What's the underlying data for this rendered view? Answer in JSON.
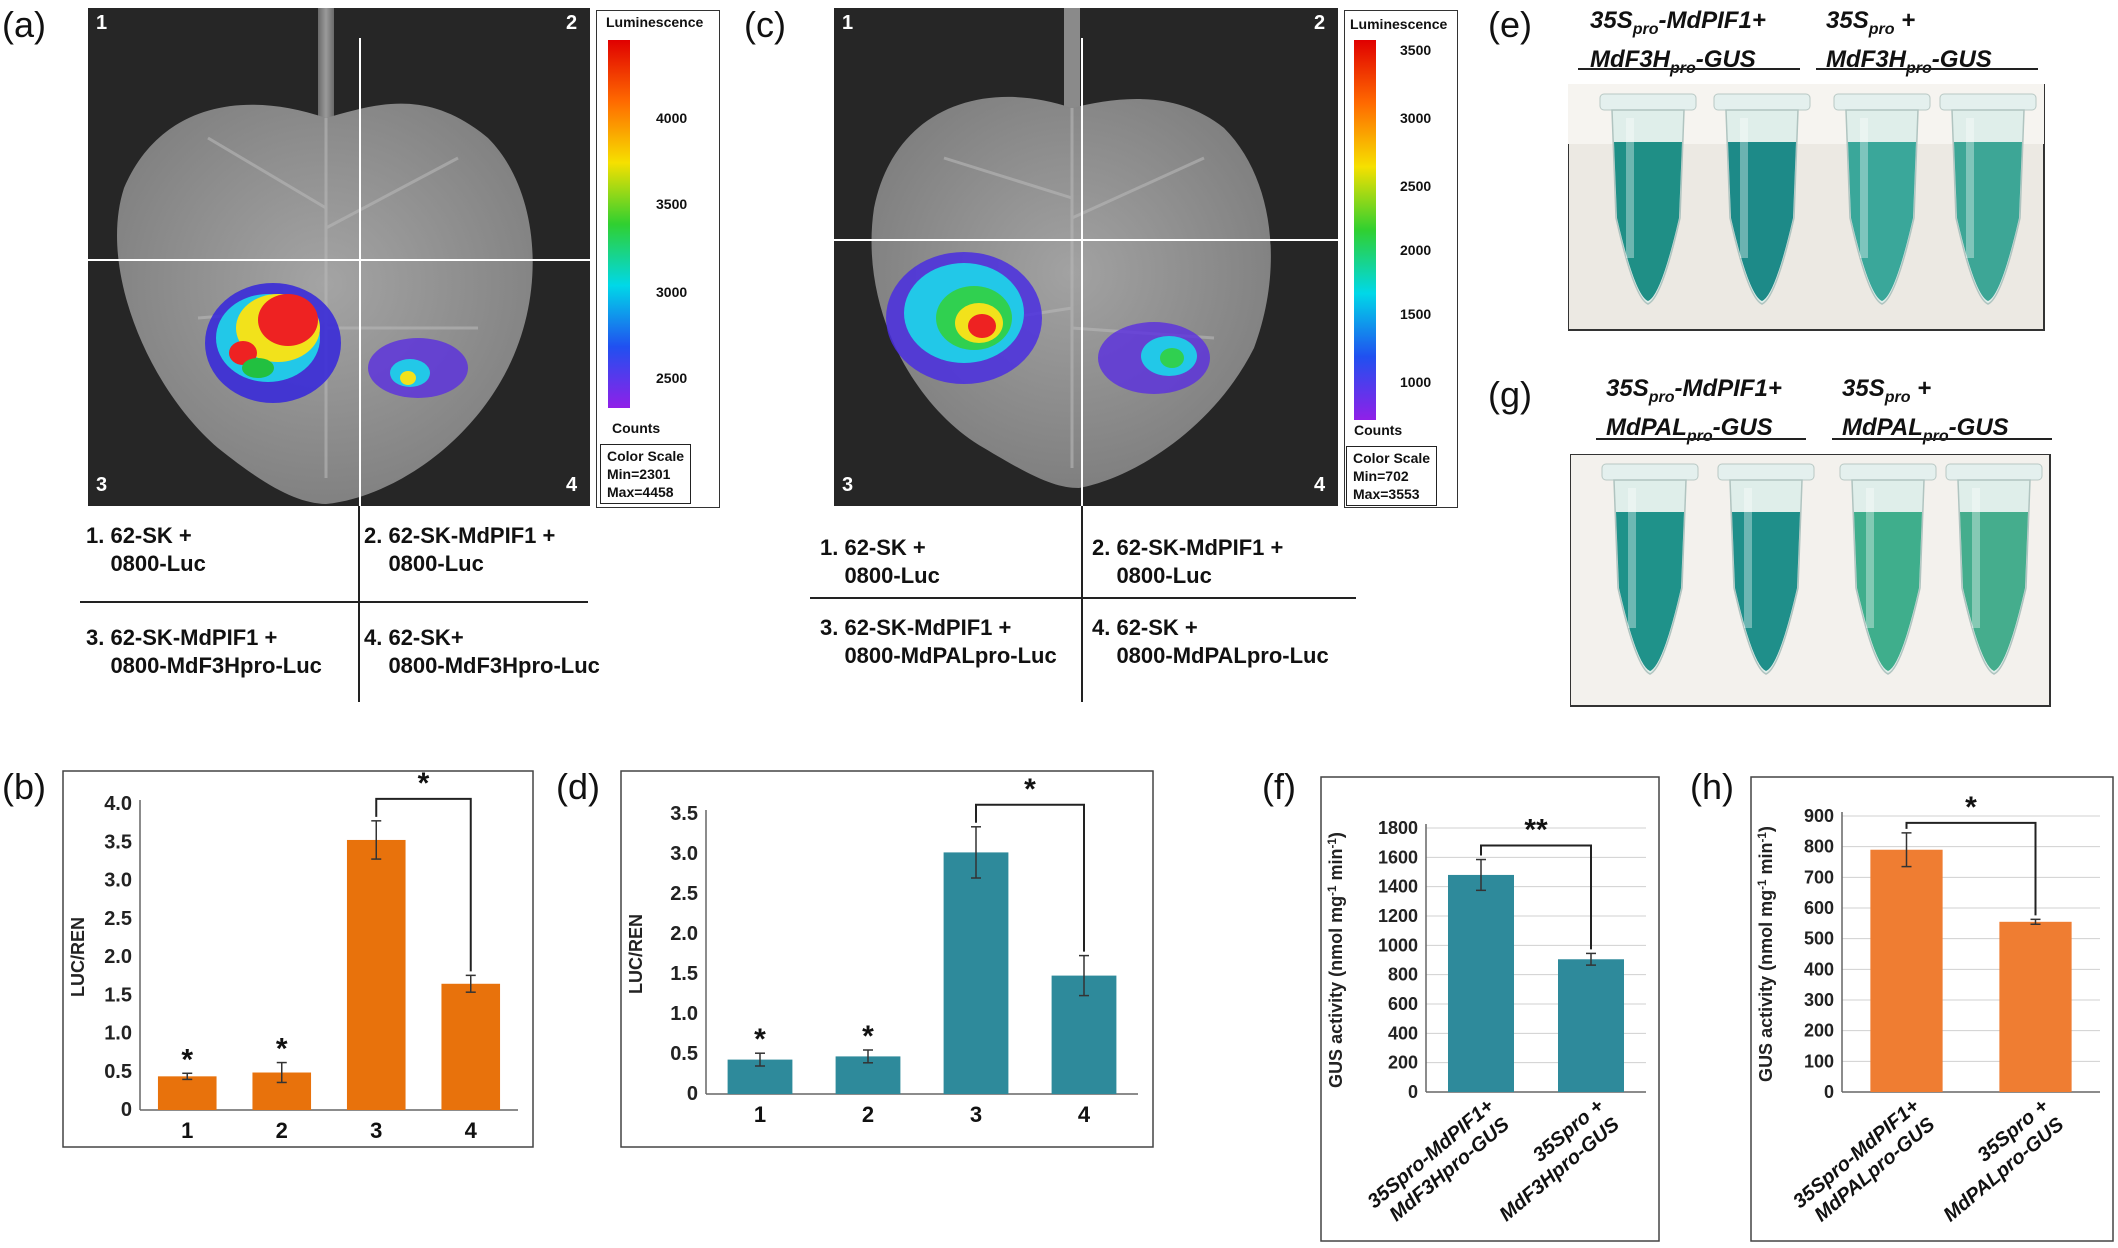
{
  "panel_labels": {
    "a": "(a)",
    "b": "(b)",
    "c": "(c)",
    "d": "(d)",
    "e": "(e)",
    "f": "(f)",
    "g": "(g)",
    "h": "(h)"
  },
  "imaging_a": {
    "quadrants": [
      "1",
      "2",
      "3",
      "4"
    ],
    "scale_title": "Luminescence",
    "scale_ticks": [
      "4000",
      "3500",
      "3000",
      "2500"
    ],
    "scale_unit": "Counts",
    "scale_info": "Color Scale\nMin=2301\nMax=4458",
    "legend": [
      "1. 62-SK +\n    0800-Luc",
      "2. 62-SK-MdPIF1 +\n    0800-Luc",
      "3. 62-SK-MdPIF1 +\n    0800-MdF3Hpro-Luc",
      "4. 62-SK+\n    0800-MdF3Hpro-Luc"
    ]
  },
  "imaging_c": {
    "quadrants": [
      "1",
      "2",
      "3",
      "4"
    ],
    "scale_title": "Luminescence",
    "scale_ticks": [
      "3500",
      "3000",
      "2500",
      "2000",
      "1500",
      "1000"
    ],
    "scale_unit": "Counts",
    "scale_info": "Color Scale\nMin=702\nMax=3553",
    "legend": [
      "1. 62-SK +\n    0800-Luc",
      "2. 62-SK-MdPIF1 +\n    0800-Luc",
      "3. 62-SK-MdPIF1 +\n    0800-MdPALpro-Luc",
      "4. 62-SK +\n    0800-MdPALpro-Luc"
    ]
  },
  "gus_e": {
    "left_label_line1": "35S",
    "left_label_sub1": "pro",
    "left_label_rest1": "-MdPIF1+",
    "left_label_line2": "MdF3H",
    "left_label_sub2": "pro",
    "left_label_rest2": "-GUS",
    "right_label_line1": "35S",
    "right_label_sub1": "pro",
    "right_label_rest1": " +",
    "right_label_line2": "MdF3H",
    "right_label_sub2": "pro",
    "right_label_rest2": "-GUS",
    "tube_colors": [
      "#1f8f86",
      "#1d8a88",
      "#3aa79a",
      "#3da696"
    ]
  },
  "gus_g": {
    "left_label_line1": "35S",
    "left_label_sub1": "pro",
    "left_label_rest1": "-MdPIF1+",
    "left_label_line2": "MdPAL",
    "left_label_sub2": "pro",
    "left_label_rest2": "-GUS",
    "right_label_line1": "35S",
    "right_label_sub1": "pro",
    "right_label_rest1": " +",
    "right_label_line2": "MdPAL",
    "right_label_sub2": "pro",
    "right_label_rest2": "-GUS",
    "tube_colors": [
      "#1f928a",
      "#1f8f8a",
      "#3fae8c",
      "#45ad8d"
    ]
  },
  "chart_data": [
    {
      "id": "b",
      "type": "bar",
      "color": "#e8720c",
      "categories": [
        "1",
        "2",
        "3",
        "4"
      ],
      "values": [
        0.44,
        0.49,
        3.53,
        1.65
      ],
      "errors": [
        0.04,
        0.13,
        0.25,
        0.11
      ],
      "ylabel": "LUC/REN",
      "ylim": [
        0,
        4.0
      ],
      "yticks": [
        "0",
        "0.5",
        "1.0",
        "1.5",
        "2.0",
        "2.5",
        "3.0",
        "3.5",
        "4.0"
      ],
      "stars": [
        "*",
        "*",
        "",
        ""
      ],
      "bracket": {
        "from": 2,
        "to": 3,
        "label": "*"
      }
    },
    {
      "id": "d",
      "type": "bar",
      "color": "#2e8a9b",
      "categories": [
        "1",
        "2",
        "3",
        "4"
      ],
      "values": [
        0.43,
        0.47,
        3.02,
        1.48
      ],
      "errors": [
        0.08,
        0.08,
        0.32,
        0.25
      ],
      "ylabel": "LUC/REN",
      "ylim": [
        0,
        3.5
      ],
      "yticks": [
        "0",
        "0.5",
        "1.0",
        "1.5",
        "2.0",
        "2.5",
        "3.0",
        "3.5"
      ],
      "stars": [
        "*",
        "*",
        "",
        ""
      ],
      "bracket": {
        "from": 2,
        "to": 3,
        "label": "*"
      }
    },
    {
      "id": "f",
      "type": "bar",
      "color": "#2e8a9b",
      "categories": [
        "35Spro-MdPIF1+ MdF3Hpro-GUS",
        "35Spro + MdF3Hpro-GUS"
      ],
      "values": [
        1480,
        905
      ],
      "errors": [
        105,
        40
      ],
      "ylabel": "GUS activity (nmol mg-1 min-1)",
      "ylim": [
        0,
        1800
      ],
      "yticks": [
        "0",
        "200",
        "400",
        "600",
        "800",
        "1000",
        "1200",
        "1400",
        "1600",
        "1800"
      ],
      "bracket": {
        "from": 0,
        "to": 1,
        "label": "**"
      }
    },
    {
      "id": "h",
      "type": "bar",
      "color": "#ef7d32",
      "categories": [
        "35Spro-MdPIF1+ MdPALpro-GUS",
        "35Spro + MdPALpro-GUS"
      ],
      "values": [
        790,
        555
      ],
      "errors": [
        55,
        8
      ],
      "ylabel": "GUS activity (nmol mg-1 min-1)",
      "ylim": [
        0,
        900
      ],
      "yticks": [
        "0",
        "100",
        "200",
        "300",
        "400",
        "500",
        "600",
        "700",
        "800",
        "900"
      ],
      "bracket": {
        "from": 0,
        "to": 1,
        "label": "*"
      }
    }
  ]
}
